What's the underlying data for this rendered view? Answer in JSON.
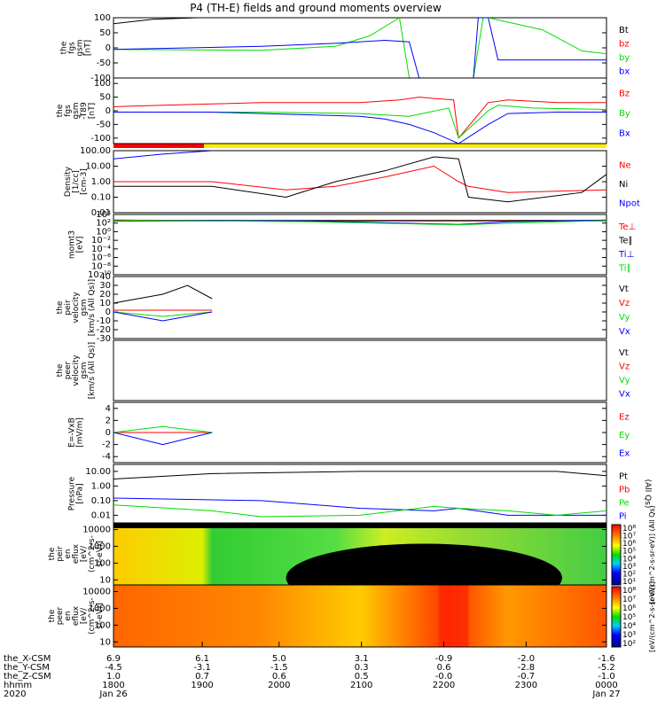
{
  "title": "P4 (TH-E) fields and ground moments overview",
  "colors": {
    "black": "#000000",
    "red": "#ff0000",
    "green": "#00dd00",
    "blue": "#0000ff",
    "yellow": "#ffee00"
  },
  "chart_data": [
    {
      "type": "line",
      "panel": "fgs-gsm",
      "ylabel": [
        "the",
        "fgs",
        "gsm",
        "[nT]"
      ],
      "ylim": [
        -100,
        100
      ],
      "yticks": [
        "100",
        "50",
        "0",
        "-50",
        "-100"
      ],
      "legend": [
        {
          "label": "Bt",
          "color": "black"
        },
        {
          "label": "bz",
          "color": "red"
        },
        {
          "label": "by",
          "color": "green"
        },
        {
          "label": "bx",
          "color": "blue"
        }
      ],
      "series": [
        {
          "name": "Bt",
          "color": "black",
          "x": [
            0,
            0.08,
            0.17
          ],
          "y": [
            80,
            95,
            100
          ]
        },
        {
          "name": "by",
          "color": "green",
          "x": [
            0,
            0.3,
            0.45,
            0.52,
            0.58,
            0.6,
            0.73,
            0.75,
            0.76,
            0.87,
            0.95,
            1.0
          ],
          "y": [
            -5,
            -8,
            5,
            40,
            100,
            -100,
            -100,
            100,
            100,
            60,
            -10,
            -20
          ]
        },
        {
          "name": "bx",
          "color": "blue",
          "x": [
            0,
            0.3,
            0.45,
            0.55,
            0.6,
            0.62,
            0.73,
            0.74,
            0.76,
            0.78,
            0.9,
            1.0
          ],
          "y": [
            -5,
            5,
            15,
            25,
            20,
            -100,
            -100,
            100,
            100,
            -40,
            -40,
            -40
          ]
        }
      ]
    },
    {
      "type": "line",
      "panel": "fgs-gsm-t89",
      "ylabel": [
        "the",
        "fgs",
        "gsm",
        "-T89",
        "[nT]"
      ],
      "ylim": [
        -120,
        120
      ],
      "yticks": [
        "100",
        "50",
        "0",
        "-50",
        "-100"
      ],
      "legend": [
        {
          "label": "Bz",
          "color": "red"
        },
        {
          "label": "By",
          "color": "green"
        },
        {
          "label": "Bx",
          "color": "blue"
        }
      ],
      "series": [
        {
          "name": "Bz",
          "color": "red",
          "x": [
            0,
            0.1,
            0.2,
            0.3,
            0.4,
            0.5,
            0.58,
            0.62,
            0.65,
            0.69,
            0.7,
            0.76,
            0.8,
            0.9,
            1.0
          ],
          "y": [
            15,
            20,
            25,
            30,
            30,
            30,
            40,
            50,
            45,
            40,
            -100,
            30,
            40,
            30,
            30
          ]
        },
        {
          "name": "By",
          "color": "green",
          "x": [
            0,
            0.3,
            0.5,
            0.6,
            0.68,
            0.7,
            0.76,
            0.78,
            0.85,
            1.0
          ],
          "y": [
            -5,
            -5,
            -10,
            -20,
            10,
            -100,
            0,
            20,
            10,
            5
          ]
        },
        {
          "name": "Bx",
          "color": "blue",
          "x": [
            0,
            0.2,
            0.3,
            0.4,
            0.5,
            0.55,
            0.6,
            0.65,
            0.7,
            0.76,
            0.8,
            0.9,
            1.0
          ],
          "y": [
            -5,
            -5,
            -10,
            -15,
            -20,
            -30,
            -50,
            -80,
            -120,
            -50,
            -10,
            -5,
            -5
          ]
        }
      ]
    },
    {
      "type": "line",
      "panel": "density",
      "ylabel": [
        "Density",
        "[1/cc]",
        "[cm-3]"
      ],
      "yscale": "log",
      "ylim": [
        0.01,
        100
      ],
      "yticks": [
        "100.00",
        "10.00",
        "1.00",
        "0.10",
        "0.01"
      ],
      "legend": [
        {
          "label": "Ne",
          "color": "red"
        },
        {
          "label": "Ni",
          "color": "black"
        },
        {
          "label": "Npot",
          "color": "blue"
        }
      ],
      "series": [
        {
          "name": "Npot",
          "color": "blue",
          "x": [
            0,
            0.1,
            0.2
          ],
          "y": [
            30,
            60,
            100
          ]
        },
        {
          "name": "Ne",
          "color": "red",
          "x": [
            0,
            0.2,
            0.35,
            0.45,
            0.55,
            0.65,
            0.7,
            0.72,
            0.8,
            1.0
          ],
          "y": [
            1,
            1,
            0.3,
            0.5,
            2,
            10,
            1,
            0.5,
            0.2,
            0.3
          ]
        },
        {
          "name": "Ni",
          "color": "black",
          "x": [
            0,
            0.2,
            0.35,
            0.45,
            0.55,
            0.65,
            0.7,
            0.72,
            0.8,
            0.95,
            1.0
          ],
          "y": [
            0.5,
            0.5,
            0.1,
            1,
            5,
            40,
            30,
            0.1,
            0.05,
            0.2,
            3
          ]
        }
      ]
    },
    {
      "type": "line",
      "panel": "mom-temps",
      "ylabel": [
        "momt3",
        "[eV]"
      ],
      "yscale": "log",
      "ylim": [
        1e-10,
        10000.0
      ],
      "yticks": [
        "10⁴",
        "10²",
        "10⁰",
        "10⁻²",
        "10⁻⁴",
        "10⁻⁶",
        "10⁻⁸",
        "10⁻¹⁰"
      ],
      "legend": [
        {
          "label": "Te⊥",
          "color": "red"
        },
        {
          "label": "Te∥",
          "color": "black"
        },
        {
          "label": "Ti⊥",
          "color": "blue"
        },
        {
          "label": "Ti∥",
          "color": "green"
        }
      ],
      "series": [
        {
          "name": "Te⊥",
          "color": "red",
          "x": [
            0,
            0.5,
            1.0
          ],
          "y": [
            300,
            300,
            300
          ]
        },
        {
          "name": "Te∥",
          "color": "black",
          "x": [
            0,
            0.5,
            1.0
          ],
          "y": [
            400,
            400,
            400
          ]
        },
        {
          "name": "Ti⊥",
          "color": "blue",
          "x": [
            0,
            0.4,
            0.7,
            0.8,
            1.0
          ],
          "y": [
            500,
            300,
            50,
            200,
            500
          ]
        },
        {
          "name": "Ti∥",
          "color": "green",
          "x": [
            0,
            0.4,
            0.7,
            1.0
          ],
          "y": [
            500,
            200,
            40,
            400
          ]
        }
      ]
    },
    {
      "type": "line",
      "panel": "peir-velocity",
      "ylabel": [
        "the",
        "peir",
        "velocity",
        "gsm",
        "[km/s (All Qs)]"
      ],
      "ylim": [
        -30,
        40
      ],
      "yticks": [
        "40",
        "30",
        "20",
        "10",
        "0",
        "-10",
        "-20",
        "-30"
      ],
      "legend": [
        {
          "label": "Vt",
          "color": "black"
        },
        {
          "label": "Vz",
          "color": "red"
        },
        {
          "label": "Vy",
          "color": "green"
        },
        {
          "label": "Vx",
          "color": "blue"
        }
      ],
      "series": [
        {
          "name": "Vt",
          "color": "black",
          "x": [
            0,
            0.05,
            0.1,
            0.15,
            0.2
          ],
          "y": [
            10,
            15,
            20,
            30,
            15
          ]
        },
        {
          "name": "Vz",
          "color": "red",
          "x": [
            0,
            0.2
          ],
          "y": [
            2,
            2
          ]
        },
        {
          "name": "Vy",
          "color": "green",
          "x": [
            0,
            0.1,
            0.2
          ],
          "y": [
            0,
            -5,
            0
          ]
        },
        {
          "name": "Vx",
          "color": "blue",
          "x": [
            0,
            0.1,
            0.2
          ],
          "y": [
            0,
            -10,
            0
          ]
        }
      ]
    },
    {
      "type": "line",
      "panel": "peer-velocity",
      "ylabel": [
        "the",
        "peer",
        "velocity",
        "gsm",
        "[km/s (All Qs)]"
      ],
      "legend": [
        {
          "label": "Vt",
          "color": "black"
        },
        {
          "label": "Vz",
          "color": "red"
        },
        {
          "label": "Vy",
          "color": "green"
        },
        {
          "label": "Vx",
          "color": "blue"
        }
      ],
      "series": []
    },
    {
      "type": "line",
      "panel": "efield",
      "ylabel": [
        "E=-VxB",
        "[mV/m]"
      ],
      "ylim": [
        -5,
        5
      ],
      "yticks": [
        "4",
        "2",
        "0",
        "-2",
        "-4"
      ],
      "legend": [
        {
          "label": "Ez",
          "color": "red"
        },
        {
          "label": "Ey",
          "color": "green"
        },
        {
          "label": "Ex",
          "color": "blue"
        }
      ],
      "series": [
        {
          "name": "Ez",
          "color": "red",
          "x": [
            0,
            0.2
          ],
          "y": [
            0,
            0
          ]
        },
        {
          "name": "Ey",
          "color": "green",
          "x": [
            0,
            0.1,
            0.2
          ],
          "y": [
            0,
            1,
            0
          ]
        },
        {
          "name": "Ex",
          "color": "blue",
          "x": [
            0,
            0.1,
            0.2
          ],
          "y": [
            0,
            -2,
            0
          ]
        }
      ]
    },
    {
      "type": "line",
      "panel": "pressure",
      "ylabel": [
        "Pressure",
        "[nPa]"
      ],
      "yscale": "log",
      "ylim": [
        0.003,
        30
      ],
      "yticks": [
        "10.00",
        "1.00",
        "0.10",
        "0.01"
      ],
      "legend": [
        {
          "label": "Pt",
          "color": "black"
        },
        {
          "label": "Pb",
          "color": "red"
        },
        {
          "label": "Pe",
          "color": "green"
        },
        {
          "label": "Pi",
          "color": "blue"
        }
      ],
      "right_label": "(All Qs)",
      "series": [
        {
          "name": "Pt",
          "color": "black",
          "x": [
            0,
            0.2,
            0.5,
            0.9,
            1.0
          ],
          "y": [
            3,
            7,
            10,
            10,
            5
          ]
        },
        {
          "name": "Pi",
          "color": "blue",
          "x": [
            0,
            0.3,
            0.5,
            0.65,
            0.7,
            0.8,
            0.9,
            1.0
          ],
          "y": [
            0.15,
            0.1,
            0.03,
            0.02,
            0.03,
            0.01,
            0.01,
            0.01
          ]
        },
        {
          "name": "Pe",
          "color": "green",
          "x": [
            0,
            0.2,
            0.3,
            0.5,
            0.65,
            0.7,
            0.8,
            0.9,
            1.0
          ],
          "y": [
            0.05,
            0.02,
            0.008,
            0.01,
            0.04,
            0.03,
            0.02,
            0.01,
            0.02
          ]
        }
      ]
    },
    {
      "type": "heatmap",
      "panel": "peir-eflux",
      "ylabel": [
        "the",
        "peir",
        "en",
        "eflux",
        "[eV/",
        "(cm^2-s-",
        "sr-eV)]"
      ],
      "yscale": "log",
      "ylim": [
        5,
        25000
      ],
      "yticks": [
        "10000",
        "1000",
        "100",
        "10"
      ]
    },
    {
      "type": "heatmap",
      "panel": "peer-eflux",
      "ylabel": [
        "the",
        "peer",
        "en",
        "eflux",
        "[eV/",
        "(cm^2-s-",
        "sr-eV)]"
      ],
      "yscale": "log",
      "ylim": [
        5,
        25000
      ],
      "yticks": [
        "10000",
        "1000",
        "100",
        "10"
      ]
    }
  ],
  "colorbars": [
    {
      "ticks": [
        "10⁸",
        "10⁷",
        "10⁶",
        "10⁵",
        "10⁴",
        "10³",
        "10²",
        "10¹"
      ],
      "label": "[eV/(cm^2-s-sr-eV)] (All Qs)"
    },
    {
      "ticks": [
        "10⁸",
        "10⁷",
        "10⁶",
        "10⁵",
        "10⁴",
        "10³",
        "10²"
      ],
      "label": "[eV/(cm^2-s-sr-eV)]"
    }
  ],
  "xaxis": {
    "rows": [
      {
        "label": "the_X-CSM",
        "values": [
          "6.9",
          "6.1",
          "5.0",
          "3.1",
          "-0.9",
          "-2.0",
          "-1.6"
        ]
      },
      {
        "label": "the_Y-CSM",
        "values": [
          "-4.5",
          "-3.1",
          "-1.5",
          "0.3",
          "0.6",
          "-2.8",
          "-5.2"
        ]
      },
      {
        "label": "the_Z-CSM",
        "values": [
          "1.0",
          "0.7",
          "0.6",
          "0.5",
          "-0.0",
          "-0.7",
          "-1.0"
        ]
      },
      {
        "label": "hhmm",
        "values": [
          "1800",
          "1900",
          "2000",
          "2100",
          "2200",
          "2300",
          "0000"
        ]
      },
      {
        "label": "2020",
        "values": [
          "Jan 26",
          "",
          "",
          "",
          "",
          "",
          "Jan 27"
        ]
      }
    ]
  }
}
